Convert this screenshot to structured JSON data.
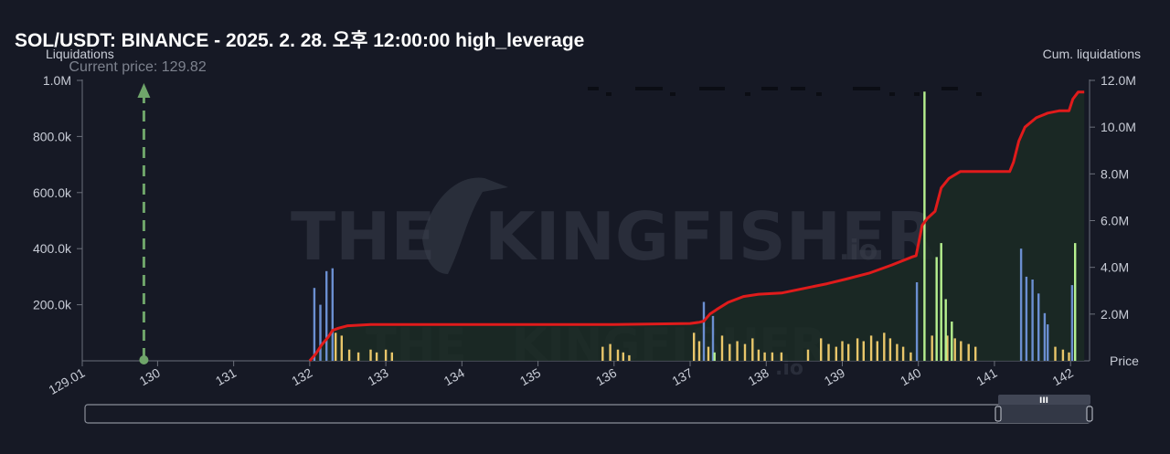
{
  "header": {
    "title": "SOL/USDT: BINANCE - 2025. 2. 28. 오후 12:00:00 high_leverage"
  },
  "chart_data": {
    "type": "bar",
    "left_axis_label": "Liquidations",
    "right_axis_label": "Cum. liquidations",
    "x_axis_label": "Price",
    "current_price_label": "Current price: 129.82",
    "current_price": 129.82,
    "xlim": [
      129.01,
      142.25
    ],
    "ylim_left": [
      0,
      1000000
    ],
    "ylim_right": [
      0,
      12000000
    ],
    "x_ticks": [
      "129.01",
      "130",
      "131",
      "132",
      "133",
      "134",
      "135",
      "136",
      "137",
      "138",
      "139",
      "140",
      "141",
      "142"
    ],
    "x_tick_values": [
      129.01,
      130,
      131,
      132,
      133,
      134,
      135,
      136,
      137,
      138,
      139,
      140,
      141,
      142
    ],
    "y_left_ticks": [
      "200.0k",
      "400.0k",
      "600.0k",
      "800.0k",
      "1.0M"
    ],
    "y_left_tick_values": [
      200000,
      400000,
      600000,
      800000,
      1000000
    ],
    "y_right_ticks": [
      "2.0M",
      "4.0M",
      "6.0M",
      "8.0M",
      "10.0M",
      "12.0M"
    ],
    "y_right_tick_values": [
      2000000,
      4000000,
      6000000,
      8000000,
      10000000,
      12000000
    ],
    "colors": {
      "background": "#161925",
      "cum_line": "#e01b1b",
      "cum_fill": "#1b2b24",
      "current_price": "#6fa56a",
      "bar_blue": "#6b8fd1",
      "bar_yellow": "#e8c66a",
      "bar_green": "#b6f08f"
    },
    "series": [
      {
        "name": "blue",
        "color": "#6b8fd1",
        "points": [
          [
            132.06,
            260000
          ],
          [
            132.14,
            200000
          ],
          [
            132.22,
            320000
          ],
          [
            132.3,
            330000
          ],
          [
            137.18,
            210000
          ],
          [
            137.3,
            160000
          ],
          [
            139.98,
            280000
          ],
          [
            141.35,
            400000
          ],
          [
            141.42,
            300000
          ],
          [
            141.5,
            290000
          ],
          [
            141.58,
            240000
          ],
          [
            141.66,
            170000
          ],
          [
            141.7,
            130000
          ],
          [
            142.02,
            270000
          ]
        ]
      },
      {
        "name": "yellow",
        "color": "#e8c66a",
        "points": [
          [
            132.34,
            100000
          ],
          [
            132.42,
            90000
          ],
          [
            132.52,
            40000
          ],
          [
            132.64,
            30000
          ],
          [
            132.8,
            40000
          ],
          [
            132.88,
            30000
          ],
          [
            133.0,
            40000
          ],
          [
            133.08,
            30000
          ],
          [
            135.85,
            50000
          ],
          [
            135.95,
            60000
          ],
          [
            136.05,
            40000
          ],
          [
            136.12,
            30000
          ],
          [
            136.2,
            20000
          ],
          [
            137.05,
            100000
          ],
          [
            137.12,
            70000
          ],
          [
            137.24,
            50000
          ],
          [
            137.42,
            90000
          ],
          [
            137.52,
            60000
          ],
          [
            137.62,
            70000
          ],
          [
            137.72,
            60000
          ],
          [
            137.82,
            80000
          ],
          [
            137.9,
            40000
          ],
          [
            137.98,
            30000
          ],
          [
            138.08,
            30000
          ],
          [
            138.2,
            30000
          ],
          [
            138.55,
            40000
          ],
          [
            138.72,
            80000
          ],
          [
            138.82,
            60000
          ],
          [
            138.92,
            50000
          ],
          [
            139.0,
            70000
          ],
          [
            139.08,
            60000
          ],
          [
            139.2,
            80000
          ],
          [
            139.28,
            70000
          ],
          [
            139.38,
            90000
          ],
          [
            139.46,
            70000
          ],
          [
            139.55,
            100000
          ],
          [
            139.63,
            80000
          ],
          [
            139.72,
            60000
          ],
          [
            139.8,
            50000
          ],
          [
            139.9,
            30000
          ],
          [
            140.18,
            90000
          ],
          [
            140.38,
            90000
          ],
          [
            140.48,
            80000
          ],
          [
            140.56,
            70000
          ],
          [
            140.66,
            60000
          ],
          [
            140.75,
            50000
          ],
          [
            141.8,
            50000
          ],
          [
            141.9,
            40000
          ],
          [
            141.98,
            30000
          ]
        ]
      },
      {
        "name": "green",
        "color": "#b6f08f",
        "points": [
          [
            137.32,
            30000
          ],
          [
            140.08,
            960000
          ],
          [
            140.24,
            370000
          ],
          [
            140.3,
            420000
          ],
          [
            140.36,
            220000
          ],
          [
            140.44,
            140000
          ],
          [
            142.06,
            420000
          ]
        ]
      }
    ],
    "cumulative": {
      "name": "Cum. liquidations",
      "x": [
        132.0,
        132.08,
        132.16,
        132.24,
        132.3,
        132.38,
        132.5,
        132.8,
        133.0,
        135.0,
        136.0,
        137.0,
        137.12,
        137.18,
        137.26,
        137.35,
        137.5,
        137.7,
        137.9,
        138.2,
        138.5,
        138.8,
        139.05,
        139.35,
        139.65,
        139.92,
        139.97,
        140.05,
        140.12,
        140.22,
        140.3,
        140.4,
        140.55,
        140.7,
        141.2,
        141.25,
        141.32,
        141.4,
        141.55,
        141.7,
        141.85,
        141.98,
        142.03,
        142.1,
        142.18
      ],
      "y": [
        0,
        300000,
        700000,
        1000000,
        1300000,
        1400000,
        1500000,
        1550000,
        1550000,
        1550000,
        1550000,
        1600000,
        1650000,
        1700000,
        2000000,
        2200000,
        2500000,
        2750000,
        2850000,
        2900000,
        3100000,
        3300000,
        3500000,
        3750000,
        4100000,
        4450000,
        4500000,
        5800000,
        6100000,
        6400000,
        7400000,
        7800000,
        8100000,
        8100000,
        8100000,
        8500000,
        9400000,
        10000000,
        10400000,
        10600000,
        10700000,
        10700000,
        11200000,
        11500000,
        11500000
      ]
    }
  },
  "range_slider": {
    "handle_label": "III"
  }
}
